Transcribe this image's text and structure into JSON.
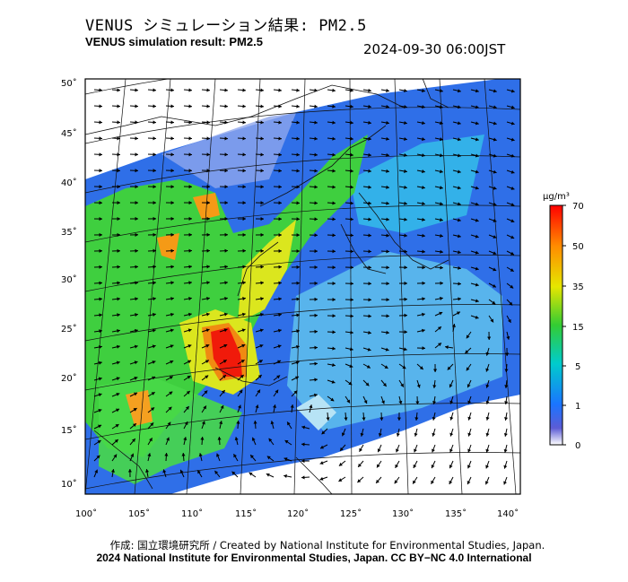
{
  "header": {
    "title_jp": "VENUS シミュレーション結果: PM2.5",
    "title_en": "VENUS simulation result: PM2.5",
    "timestamp": "2024-09-30 06:00JST"
  },
  "map": {
    "lat_ticks": [
      "50˚",
      "45˚",
      "40˚",
      "35˚",
      "30˚",
      "25˚",
      "20˚",
      "15˚",
      "10˚"
    ],
    "lon_ticks": [
      "100˚",
      "105˚",
      "110˚",
      "115˚",
      "120˚",
      "125˚",
      "130˚",
      "135˚",
      "140˚"
    ],
    "lat_range": [
      9,
      50
    ],
    "lon_range": [
      100,
      141
    ]
  },
  "colorbar": {
    "unit": "μg/m³",
    "labels": [
      "70",
      "50",
      "35",
      "15",
      "5",
      "1",
      "0"
    ],
    "colors": [
      "#ff0000",
      "#ff8c00",
      "#e6e600",
      "#33cc33",
      "#00cccc",
      "#1a75ff",
      "#5c5cd6",
      "#ffffff"
    ]
  },
  "footer": {
    "credit_line1": "作成: 国立環境研究所 / Created by National Institute for Environmental Studies, Japan.",
    "credit_line2": "2024 National Institute for Environmental Studies, Japan. CC BY−NC 4.0 International"
  }
}
